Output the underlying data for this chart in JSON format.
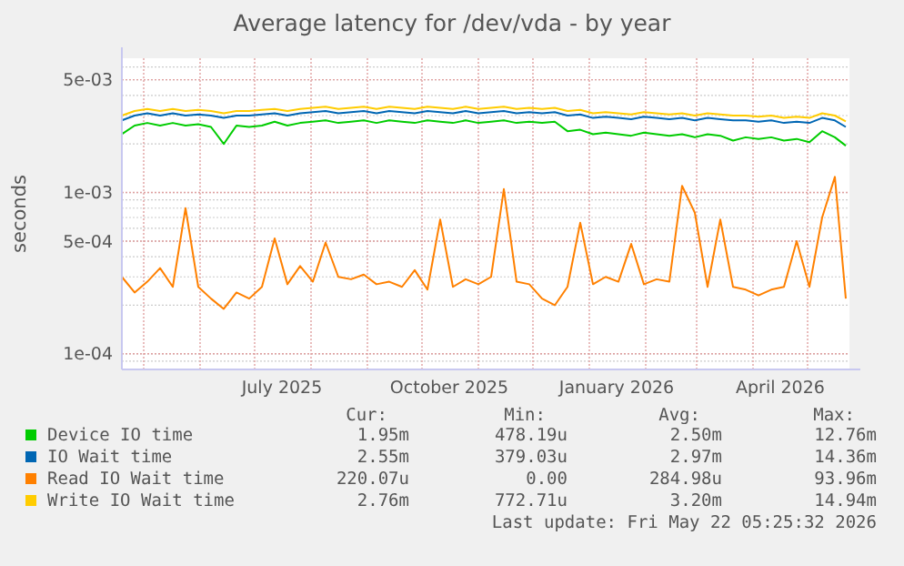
{
  "chart_data": {
    "type": "line",
    "title": "Average latency for /dev/vda - by year",
    "ylabel": "seconds",
    "log": "y",
    "grid": true,
    "legend": "bottom",
    "x": [
      "2025-04-19",
      "2025-04-26",
      "2025-05-03",
      "2025-05-10",
      "2025-05-17",
      "2025-05-24",
      "2025-05-31",
      "2025-06-07",
      "2025-06-14",
      "2025-06-21",
      "2025-06-28",
      "2025-07-05",
      "2025-07-12",
      "2025-07-19",
      "2025-07-26",
      "2025-08-02",
      "2025-08-09",
      "2025-08-16",
      "2025-08-23",
      "2025-08-30",
      "2025-09-06",
      "2025-09-13",
      "2025-09-20",
      "2025-09-27",
      "2025-10-04",
      "2025-10-11",
      "2025-10-18",
      "2025-10-25",
      "2025-11-01",
      "2025-11-08",
      "2025-11-15",
      "2025-11-22",
      "2025-11-29",
      "2025-12-06",
      "2025-12-13",
      "2025-12-20",
      "2025-12-27",
      "2026-01-03",
      "2026-01-10",
      "2026-01-17",
      "2026-01-24",
      "2026-01-31",
      "2026-02-07",
      "2026-02-14",
      "2026-02-21",
      "2026-02-28",
      "2026-03-07",
      "2026-03-14",
      "2026-03-21",
      "2026-03-28",
      "2026-04-04",
      "2026-04-11",
      "2026-04-18",
      "2026-04-25",
      "2026-05-02",
      "2026-05-09",
      "2026-05-16",
      "2026-05-22"
    ],
    "series": [
      {
        "name": "Device IO time",
        "color": "#00cc00",
        "values": [
          0.0023,
          0.0026,
          0.0027,
          0.0026,
          0.0027,
          0.0026,
          0.00265,
          0.00255,
          0.002,
          0.0026,
          0.00255,
          0.0026,
          0.00275,
          0.0026,
          0.0027,
          0.00275,
          0.0028,
          0.0027,
          0.00275,
          0.0028,
          0.0027,
          0.0028,
          0.00275,
          0.0027,
          0.0028,
          0.00275,
          0.0027,
          0.0028,
          0.0027,
          0.00275,
          0.0028,
          0.0027,
          0.00275,
          0.0027,
          0.00275,
          0.0024,
          0.00245,
          0.0023,
          0.00235,
          0.0023,
          0.00225,
          0.00235,
          0.0023,
          0.00225,
          0.0023,
          0.0022,
          0.0023,
          0.00225,
          0.0021,
          0.0022,
          0.00215,
          0.0022,
          0.0021,
          0.00215,
          0.00205,
          0.0024,
          0.0022,
          0.00195
        ]
      },
      {
        "name": "IO Wait time",
        "color": "#0066b3",
        "values": [
          0.0028,
          0.003,
          0.0031,
          0.003,
          0.0031,
          0.003,
          0.00305,
          0.003,
          0.0029,
          0.003,
          0.003,
          0.00305,
          0.0031,
          0.003,
          0.0031,
          0.00315,
          0.0032,
          0.0031,
          0.00315,
          0.0032,
          0.0031,
          0.0032,
          0.00315,
          0.0031,
          0.0032,
          0.00315,
          0.0031,
          0.0032,
          0.0031,
          0.00315,
          0.0032,
          0.0031,
          0.00315,
          0.0031,
          0.00315,
          0.003,
          0.00305,
          0.0029,
          0.00295,
          0.0029,
          0.00285,
          0.00295,
          0.0029,
          0.00285,
          0.0029,
          0.0028,
          0.0029,
          0.00285,
          0.0028,
          0.0028,
          0.00275,
          0.0028,
          0.0027,
          0.00275,
          0.0027,
          0.0029,
          0.0028,
          0.00255
        ]
      },
      {
        "name": "Read IO Wait time",
        "color": "#ff8000",
        "values": [
          0.0003,
          0.00024,
          0.00028,
          0.00034,
          0.00026,
          0.0008,
          0.00026,
          0.00022,
          0.00019,
          0.00024,
          0.00022,
          0.00026,
          0.00052,
          0.00027,
          0.00035,
          0.00028,
          0.00049,
          0.0003,
          0.00029,
          0.00031,
          0.00027,
          0.00028,
          0.00026,
          0.00033,
          0.00025,
          0.00068,
          0.00026,
          0.00029,
          0.00027,
          0.0003,
          0.00105,
          0.00028,
          0.00027,
          0.00022,
          0.0002,
          0.00026,
          0.00065,
          0.00027,
          0.0003,
          0.00028,
          0.00048,
          0.00027,
          0.00029,
          0.00028,
          0.0011,
          0.00075,
          0.00026,
          0.00068,
          0.00026,
          0.00025,
          0.00023,
          0.00025,
          0.00026,
          0.0005,
          0.00026,
          0.0007,
          0.00125,
          0.00022
        ]
      },
      {
        "name": "Write IO Wait time",
        "color": "#ffcc00",
        "values": [
          0.003,
          0.0032,
          0.0033,
          0.0032,
          0.0033,
          0.0032,
          0.00325,
          0.0032,
          0.0031,
          0.0032,
          0.0032,
          0.00325,
          0.0033,
          0.0032,
          0.0033,
          0.00335,
          0.0034,
          0.0033,
          0.00335,
          0.0034,
          0.0033,
          0.0034,
          0.00335,
          0.0033,
          0.0034,
          0.00335,
          0.0033,
          0.0034,
          0.0033,
          0.00335,
          0.0034,
          0.0033,
          0.00335,
          0.0033,
          0.00335,
          0.0032,
          0.00325,
          0.0031,
          0.00315,
          0.0031,
          0.00305,
          0.00315,
          0.0031,
          0.00305,
          0.0031,
          0.003,
          0.0031,
          0.00305,
          0.003,
          0.003,
          0.00295,
          0.003,
          0.0029,
          0.00295,
          0.0029,
          0.0031,
          0.003,
          0.00276
        ]
      }
    ],
    "xlim": [
      "2025-04-19",
      "2026-05-24"
    ],
    "xticks": [
      {
        "value": "2025-05-01",
        "label": null
      },
      {
        "value": "2025-06-01",
        "label": null
      },
      {
        "value": "2025-07-01",
        "label": null
      },
      {
        "value": "2025-07-16",
        "label": "July 2025"
      },
      {
        "value": "2025-08-01",
        "label": null
      },
      {
        "value": "2025-09-01",
        "label": null
      },
      {
        "value": "2025-10-01",
        "label": null
      },
      {
        "value": "2025-10-16",
        "label": "October 2025"
      },
      {
        "value": "2025-11-01",
        "label": null
      },
      {
        "value": "2025-12-01",
        "label": null
      },
      {
        "value": "2026-01-01",
        "label": null
      },
      {
        "value": "2026-01-16",
        "label": "January 2026"
      },
      {
        "value": "2026-02-01",
        "label": null
      },
      {
        "value": "2026-03-01",
        "label": null
      },
      {
        "value": "2026-04-01",
        "label": null
      },
      {
        "value": "2026-04-16",
        "label": "April 2026"
      },
      {
        "value": "2026-05-01",
        "label": null
      }
    ],
    "ylim": [
      8e-05,
      0.0068
    ],
    "yticks": [
      {
        "value": 0.0001,
        "label": "1e-04"
      },
      {
        "value": 0.0005,
        "label": "5e-04"
      },
      {
        "value": 0.001,
        "label": "1e-03"
      },
      {
        "value": 0.005,
        "label": "5e-03"
      }
    ],
    "annotations": [
      "Cur:",
      "Min:",
      "Avg:",
      "Max:",
      "1.95m",
      "478.19u",
      "2.50m",
      "12.76m",
      "2.55m",
      "379.03u",
      "2.97m",
      "14.36m",
      "220.07u",
      "0.00",
      "284.98u",
      "93.96m",
      "2.76m",
      "772.71u",
      "3.20m",
      "14.94m",
      "Last update: Fri May 22 05:25:32 2026"
    ]
  }
}
